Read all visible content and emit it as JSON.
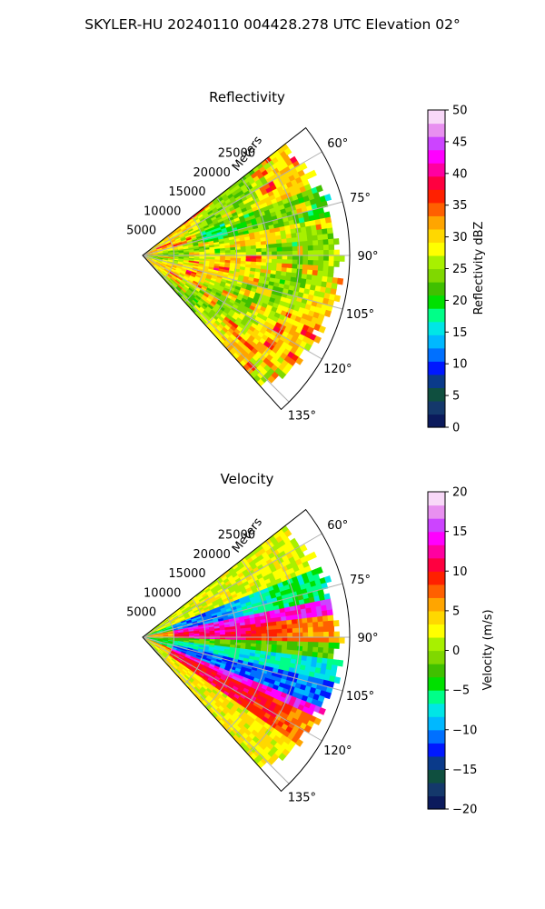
{
  "figure": {
    "suptitle": "SKYLER-HU  20240110  004428.278 UTC Elevation 02°"
  },
  "chart_data": [
    {
      "type": "heatmap",
      "projection": "polar-sector",
      "title": "Reflectivity",
      "range_label": "Meters",
      "range_ticks": [
        "5000",
        "10000",
        "15000",
        "20000",
        "25000"
      ],
      "range_tick_values": [
        5000,
        10000,
        15000,
        20000,
        25000
      ],
      "range_max": 33000,
      "azimuth_ticks": [
        "60°",
        "75°",
        "90°",
        "105°",
        "120°",
        "135°"
      ],
      "azimuth_tick_values": [
        60,
        75,
        90,
        105,
        120,
        135
      ],
      "azimuth_range": [
        52,
        138
      ],
      "grid": true,
      "colorbar": {
        "label": "Reflectivity dBZ",
        "vmin": 0,
        "vmax": 50,
        "ticks": [
          "0",
          "5",
          "10",
          "15",
          "20",
          "25",
          "30",
          "35",
          "40",
          "45",
          "50"
        ],
        "tick_values": [
          0,
          5,
          10,
          15,
          20,
          25,
          30,
          35,
          40,
          45,
          50
        ],
        "colormap": [
          "#0b1a5c",
          "#14386b",
          "#0f4f3f",
          "#0a3a8a",
          "#0018ff",
          "#0070ff",
          "#00b8ff",
          "#00e6e6",
          "#00ff88",
          "#00e000",
          "#40c000",
          "#80d800",
          "#a8f000",
          "#ffff00",
          "#ffd800",
          "#ffa500",
          "#ff6000",
          "#ff2000",
          "#ff0040",
          "#ff00a0",
          "#ff00ff",
          "#cc44ff",
          "#e890f0",
          "#f8d8f8"
        ]
      },
      "field_description": "mostly 20-32 dBZ (yellow/orange) with green 20-25 dBZ bands near 75° and 90°, scattered red 33-36 dBZ cells"
    },
    {
      "type": "heatmap",
      "projection": "polar-sector",
      "title": "Velocity",
      "range_label": "Meters",
      "range_ticks": [
        "5000",
        "10000",
        "15000",
        "20000",
        "25000"
      ],
      "range_tick_values": [
        5000,
        10000,
        15000,
        20000,
        25000
      ],
      "range_max": 33000,
      "azimuth_ticks": [
        "60°",
        "75°",
        "90°",
        "105°",
        "120°",
        "135°"
      ],
      "azimuth_tick_values": [
        60,
        75,
        90,
        105,
        120,
        135
      ],
      "azimuth_range": [
        52,
        138
      ],
      "grid": true,
      "colorbar": {
        "label": "Velocity (m/s)",
        "vmin": -20,
        "vmax": 20,
        "ticks": [
          "−20",
          "−15",
          "−10",
          "−5",
          "0",
          "5",
          "10",
          "15",
          "20"
        ],
        "tick_values": [
          -20,
          -15,
          -10,
          -5,
          0,
          5,
          10,
          15,
          20
        ],
        "colormap": [
          "#0b1a5c",
          "#14386b",
          "#0f4f3f",
          "#0a3a8a",
          "#0018ff",
          "#0070ff",
          "#00b8ff",
          "#00e6e6",
          "#00ff88",
          "#00e000",
          "#40c000",
          "#80d800",
          "#a8f000",
          "#ffff00",
          "#ffd800",
          "#ffa500",
          "#ff6000",
          "#ff2000",
          "#ff0040",
          "#ff00a0",
          "#ff00ff",
          "#cc44ff",
          "#e890f0",
          "#f8d8f8"
        ]
      },
      "field_description": "banded velocity pattern: green/cyan (-5 to -12 m/s) near 70-80° and 100-110°, red/magenta (+10 to +15 m/s) near 85-92° and 115-125°, yellow (0 m/s) elsewhere"
    }
  ]
}
